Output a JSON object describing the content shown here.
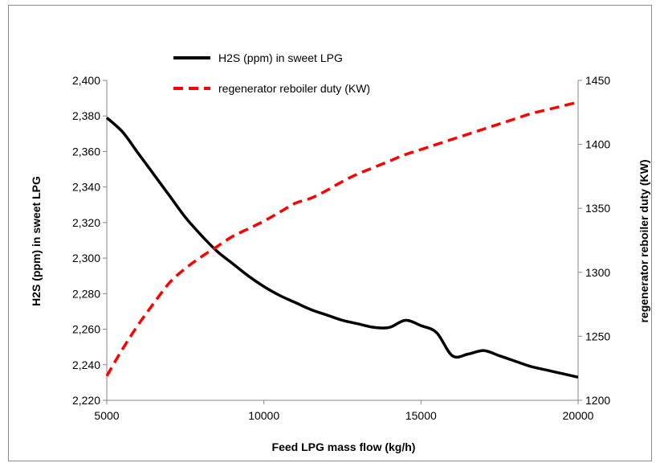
{
  "chart_data": {
    "type": "line",
    "title": "",
    "xlabel": "Feed LPG mass flow  (kg/h)",
    "ylabel_left": "H2S (ppm) in sweet LPG",
    "ylabel_right": "regenerator reboiler duty (KW)",
    "xlim": [
      5000,
      20000
    ],
    "ylim_left": [
      2220,
      2400
    ],
    "ylim_right": [
      1200,
      1450
    ],
    "x_ticks": [
      "5000",
      "10000",
      "15000",
      "20000"
    ],
    "y_left_ticks": [
      "2,220",
      "2,240",
      "2,260",
      "2,280",
      "2,300",
      "2,320",
      "2,340",
      "2,360",
      "2,380",
      "2,400"
    ],
    "y_right_ticks": [
      "1200",
      "1250",
      "1300",
      "1350",
      "1400",
      "1450"
    ],
    "grid": false,
    "legend_position": "top-center",
    "series": [
      {
        "name": "H2S (ppm) in sweet LPG",
        "axis": "left",
        "color": "#000000",
        "style": "solid",
        "x": [
          5000,
          5500,
          6000,
          6500,
          7000,
          7500,
          8000,
          8500,
          9000,
          9500,
          10000,
          10500,
          11000,
          11500,
          12000,
          12500,
          13000,
          13500,
          14000,
          14500,
          15000,
          15500,
          16000,
          16500,
          17000,
          17500,
          18000,
          18500,
          19000,
          19500,
          20000
        ],
        "y": [
          2379,
          2371,
          2359,
          2347,
          2335,
          2323,
          2313,
          2304,
          2297,
          2290,
          2284,
          2279,
          2275,
          2271,
          2268,
          2265,
          2263,
          2261,
          2261,
          2265,
          2262,
          2258,
          2245,
          2246,
          2248,
          2245,
          2242,
          2239,
          2237,
          2235,
          2233
        ]
      },
      {
        "name": "regenerator reboiler duty (KW)",
        "axis": "right",
        "color": "#ff0000",
        "style": "dashed",
        "x": [
          5000,
          5500,
          6000,
          6500,
          7000,
          7500,
          8000,
          8500,
          9000,
          9500,
          10000,
          10500,
          11000,
          11500,
          12000,
          12500,
          13000,
          13500,
          14000,
          14500,
          15000,
          15500,
          16000,
          16500,
          17000,
          17500,
          18000,
          18500,
          19000,
          19500,
          20000
        ],
        "y": [
          1219,
          1240,
          1259,
          1276,
          1292,
          1303,
          1312,
          1320,
          1328,
          1334,
          1340,
          1347,
          1354,
          1358,
          1364,
          1371,
          1377,
          1382,
          1387,
          1392,
          1396,
          1400,
          1404,
          1408,
          1412,
          1416,
          1420,
          1424,
          1427,
          1430,
          1433
        ]
      }
    ]
  }
}
